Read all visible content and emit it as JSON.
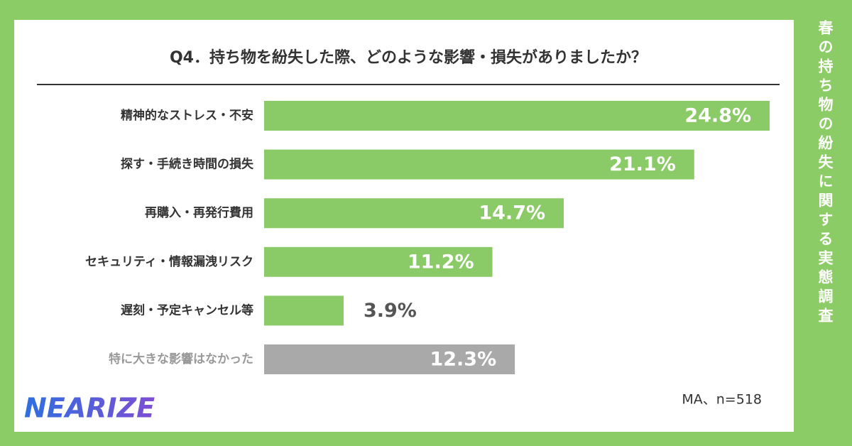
{
  "chart_data": {
    "type": "bar",
    "orientation": "horizontal",
    "title": "Q4．持ち物を紛失した際、どのような影響・損失がありましたか？",
    "categories": [
      "精神的なストレス・不安",
      "探す・手続き時間の損失",
      "再購入・再発行費用",
      "セキュリティ・情報漏洩リスク",
      "遅刻・予定キャンセル等",
      "特に大きな影響はなかった"
    ],
    "values": [
      24.8,
      21.1,
      14.7,
      11.2,
      3.9,
      12.3
    ],
    "value_labels": [
      "24.8%",
      "21.1%",
      "14.7%",
      "11.2%",
      "3.9%",
      "12.3%"
    ],
    "colors": [
      "#8bcb67",
      "#8bcb67",
      "#8bcb67",
      "#8bcb67",
      "#8bcb67",
      "#a9a9a9"
    ],
    "category_colors": [
      "#333333",
      "#333333",
      "#333333",
      "#333333",
      "#333333",
      "#999999"
    ],
    "note": "MA、n=518"
  },
  "side_title": "春の持ち物の紛失に関する実態調査",
  "logo": "NEARIZE"
}
